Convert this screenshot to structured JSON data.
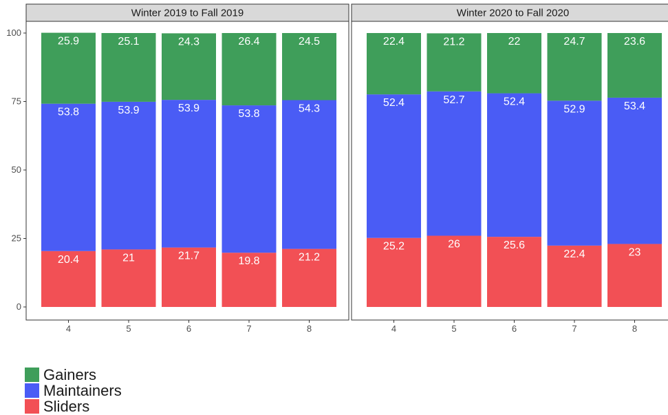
{
  "chart_data": {
    "type": "bar",
    "stacked": true,
    "categories": [
      "4",
      "5",
      "6",
      "7",
      "8"
    ],
    "ylim": [
      0,
      100
    ],
    "yticks": [
      0,
      25,
      50,
      75,
      100
    ],
    "legend_position": "bottom-left",
    "series_order": [
      "Sliders",
      "Maintainers",
      "Gainers"
    ],
    "colors": {
      "Gainers": "#3f9e5a",
      "Maintainers": "#4a5cf5",
      "Sliders": "#f25055"
    },
    "panels": [
      {
        "title": "Winter 2019 to Fall 2019",
        "series": [
          {
            "name": "Sliders",
            "values": [
              20.4,
              21,
              21.7,
              19.8,
              21.2
            ]
          },
          {
            "name": "Maintainers",
            "values": [
              53.8,
              53.9,
              53.9,
              53.8,
              54.3
            ]
          },
          {
            "name": "Gainers",
            "values": [
              25.9,
              25.1,
              24.3,
              26.4,
              24.5
            ]
          }
        ]
      },
      {
        "title": "Winter 2020 to Fall 2020",
        "series": [
          {
            "name": "Sliders",
            "values": [
              25.2,
              26,
              25.6,
              22.4,
              23
            ]
          },
          {
            "name": "Maintainers",
            "values": [
              52.4,
              52.7,
              52.4,
              52.9,
              53.4
            ]
          },
          {
            "name": "Gainers",
            "values": [
              22.4,
              21.2,
              22,
              24.7,
              23.6
            ]
          }
        ]
      }
    ]
  },
  "legend": {
    "items": [
      {
        "label": "Gainers",
        "color": "#3f9e5a"
      },
      {
        "label": "Maintainers",
        "color": "#4a5cf5"
      },
      {
        "label": "Sliders",
        "color": "#f25055"
      }
    ]
  }
}
